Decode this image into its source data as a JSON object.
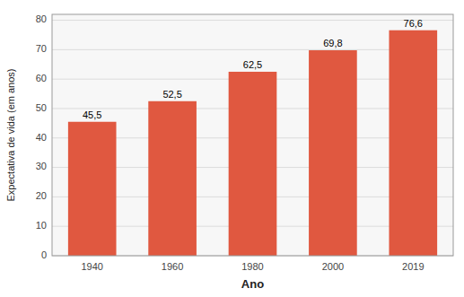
{
  "chart_data": {
    "type": "bar",
    "xlabel": "Ano",
    "ylabel": "Expectativa de vida (em anos)",
    "categories": [
      "1940",
      "1960",
      "1980",
      "2000",
      "2019"
    ],
    "values": [
      45.5,
      52.5,
      62.5,
      69.8,
      76.6
    ],
    "value_labels": [
      "45,5",
      "52,5",
      "62,5",
      "69,8",
      "76,6"
    ],
    "data_labels": true,
    "color": "#E05840",
    "ylim": [
      0,
      82
    ],
    "yticks": [
      0,
      10,
      20,
      30,
      40,
      50,
      60,
      70,
      80
    ],
    "grid": true
  }
}
